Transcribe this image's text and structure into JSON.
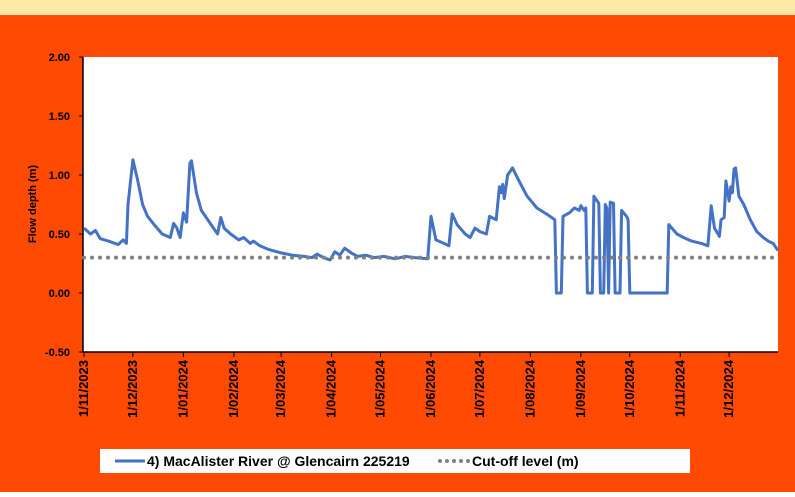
{
  "chart_data": {
    "type": "line",
    "ylabel": "Flow depth (m)",
    "ylim": [
      -0.5,
      2.0
    ],
    "yticks": [
      {
        "value": -0.5,
        "label": "-0.50"
      },
      {
        "value": 0,
        "label": "0.00"
      },
      {
        "value": 0.5,
        "label": "0.50"
      },
      {
        "value": 1.0,
        "label": "1.00"
      },
      {
        "value": 1.5,
        "label": "1.50"
      },
      {
        "value": 2.0,
        "label": "2.00"
      }
    ],
    "xlim": [
      "1/11/2023",
      "31/12/2024"
    ],
    "xticks": [
      "1/11/2023",
      "1/12/2023",
      "1/01/2024",
      "1/02/2024",
      "1/03/2024",
      "1/04/2024",
      "1/05/2024",
      "1/06/2024",
      "1/07/2024",
      "1/08/2024",
      "1/09/2024",
      "1/10/2024",
      "1/11/2024",
      "1/12/2024"
    ],
    "legend": "bottom",
    "series": [
      {
        "name": "4) MacAlister River @ Glencairn 225219",
        "color": "#4472c4",
        "style": "solid",
        "x": [
          "1/11/2023",
          "5/11/2023",
          "8/11/2023",
          "11/11/2023",
          "16/11/2023",
          "22/11/2023",
          "25/11/2023",
          "27/11/2023",
          "28/11/2023",
          "1/12/2023",
          "4/12/2023",
          "7/12/2023",
          "10/12/2023",
          "14/12/2023",
          "19/12/2023",
          "24/12/2023",
          "26/12/2023",
          "28/12/2023",
          "30/12/2023",
          "1/01/2024",
          "3/01/2024",
          "5/01/2024",
          "6/01/2024",
          "9/01/2024",
          "12/01/2024",
          "16/01/2024",
          "18/01/2024",
          "22/01/2024",
          "24/01/2024",
          "26/01/2024",
          "30/01/2024",
          "4/02/2024",
          "7/02/2024",
          "11/02/2024",
          "13/02/2024",
          "17/02/2024",
          "22/02/2024",
          "1/03/2024",
          "8/03/2024",
          "15/03/2024",
          "20/03/2024",
          "23/03/2024",
          "27/03/2024",
          "31/03/2024",
          "3/04/2024",
          "6/04/2024",
          "9/04/2024",
          "13/04/2024",
          "17/04/2024",
          "22/04/2024",
          "27/04/2024",
          "3/05/2024",
          "10/05/2024",
          "16/05/2024",
          "22/05/2024",
          "30/05/2024",
          "1/06/2024",
          "4/06/2024",
          "9/06/2024",
          "12/06/2024",
          "14/06/2024",
          "17/06/2024",
          "22/06/2024",
          "25/06/2024",
          "28/06/2024",
          "1/07/2024",
          "5/07/2024",
          "7/07/2024",
          "11/07/2024",
          "13/07/2024",
          "14/07/2024",
          "15/07/2024",
          "16/07/2024",
          "18/07/2024",
          "21/07/2024",
          "25/07/2024",
          "30/07/2024",
          "5/08/2024",
          "12/08/2024",
          "16/08/2024",
          "17/08/2024",
          "20/08/2024",
          "21/08/2024",
          "25/08/2024",
          "28/08/2024",
          "31/08/2024",
          "1/09/2024",
          "3/09/2024",
          "4/09/2024",
          "5/09/2024",
          "8/09/2024",
          "9/09/2024",
          "12/09/2024",
          "13/09/2024",
          "15/09/2024",
          "16/09/2024",
          "17/09/2024",
          "18/09/2024",
          "19/09/2024",
          "21/09/2024",
          "22/09/2024",
          "25/09/2024",
          "26/09/2024",
          "29/09/2024",
          "30/09/2024",
          "1/10/2024",
          "24/10/2024",
          "25/10/2024",
          "30/10/2024",
          "3/11/2024",
          "8/11/2024",
          "14/11/2024",
          "18/11/2024",
          "20/11/2024",
          "22/11/2024",
          "25/11/2024",
          "26/11/2024",
          "28/11/2024",
          "29/11/2024",
          "1/12/2024",
          "2/12/2024",
          "3/12/2024",
          "4/12/2024",
          "5/12/2024",
          "7/12/2024",
          "10/12/2024",
          "14/12/2024",
          "18/12/2024",
          "22/12/2024",
          "25/12/2024",
          "28/12/2024",
          "31/12/2024"
        ],
        "values": [
          0.55,
          0.5,
          0.53,
          0.46,
          0.44,
          0.41,
          0.45,
          0.42,
          0.75,
          1.13,
          0.95,
          0.75,
          0.65,
          0.58,
          0.5,
          0.47,
          0.59,
          0.55,
          0.47,
          0.68,
          0.6,
          1.1,
          1.12,
          0.85,
          0.7,
          0.62,
          0.58,
          0.5,
          0.64,
          0.55,
          0.5,
          0.45,
          0.47,
          0.42,
          0.44,
          0.4,
          0.37,
          0.34,
          0.32,
          0.31,
          0.3,
          0.33,
          0.3,
          0.28,
          0.35,
          0.32,
          0.38,
          0.34,
          0.31,
          0.32,
          0.3,
          0.31,
          0.29,
          0.31,
          0.3,
          0.29,
          0.65,
          0.45,
          0.42,
          0.4,
          0.67,
          0.58,
          0.5,
          0.47,
          0.55,
          0.52,
          0.5,
          0.65,
          0.62,
          0.9,
          0.85,
          0.92,
          0.8,
          1.0,
          1.06,
          0.95,
          0.82,
          0.72,
          0.66,
          0.62,
          0,
          0,
          0.65,
          0.68,
          0.72,
          0.7,
          0.74,
          0.7,
          0.72,
          0,
          0,
          0.82,
          0.76,
          0,
          0,
          0.75,
          0.72,
          0,
          0.77,
          0.76,
          0,
          0,
          0.7,
          0.65,
          0.62,
          0,
          0,
          0.58,
          0.5,
          0.47,
          0.44,
          0.42,
          0.4,
          0.74,
          0.55,
          0.48,
          0.62,
          0.64,
          0.95,
          0.78,
          0.9,
          0.85,
          1.05,
          1.06,
          0.82,
          0.75,
          0.62,
          0.52,
          0.47,
          0.44,
          0.42,
          0.36
        ]
      },
      {
        "name": "Cut-off level (m)",
        "color": "#808080",
        "style": "dotted",
        "x": [
          "1/11/2023",
          "31/12/2024"
        ],
        "values": [
          0.3,
          0.3
        ]
      }
    ]
  }
}
